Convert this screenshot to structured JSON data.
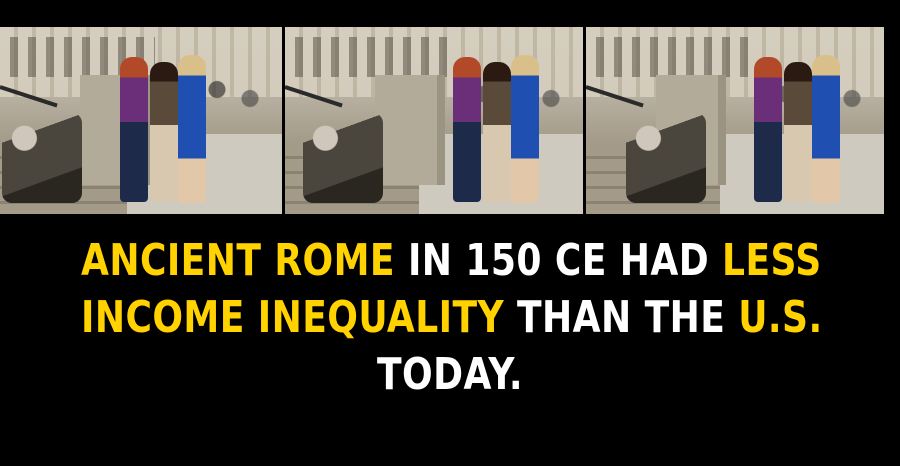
{
  "image": {
    "panel_count": 3,
    "colors": {
      "background": "#000000",
      "highlight": "#ffd200",
      "text": "#ffffff"
    }
  },
  "caption": {
    "line1": {
      "part1": "ANCIENT ROME",
      "part2": " IN 150 CE HAD ",
      "part3": "LESS"
    },
    "line2": {
      "part1": "INCOME INEQUALITY",
      "part2": " THAN THE ",
      "part3": "U.S."
    },
    "line3": {
      "part1": "TODAY."
    }
  }
}
